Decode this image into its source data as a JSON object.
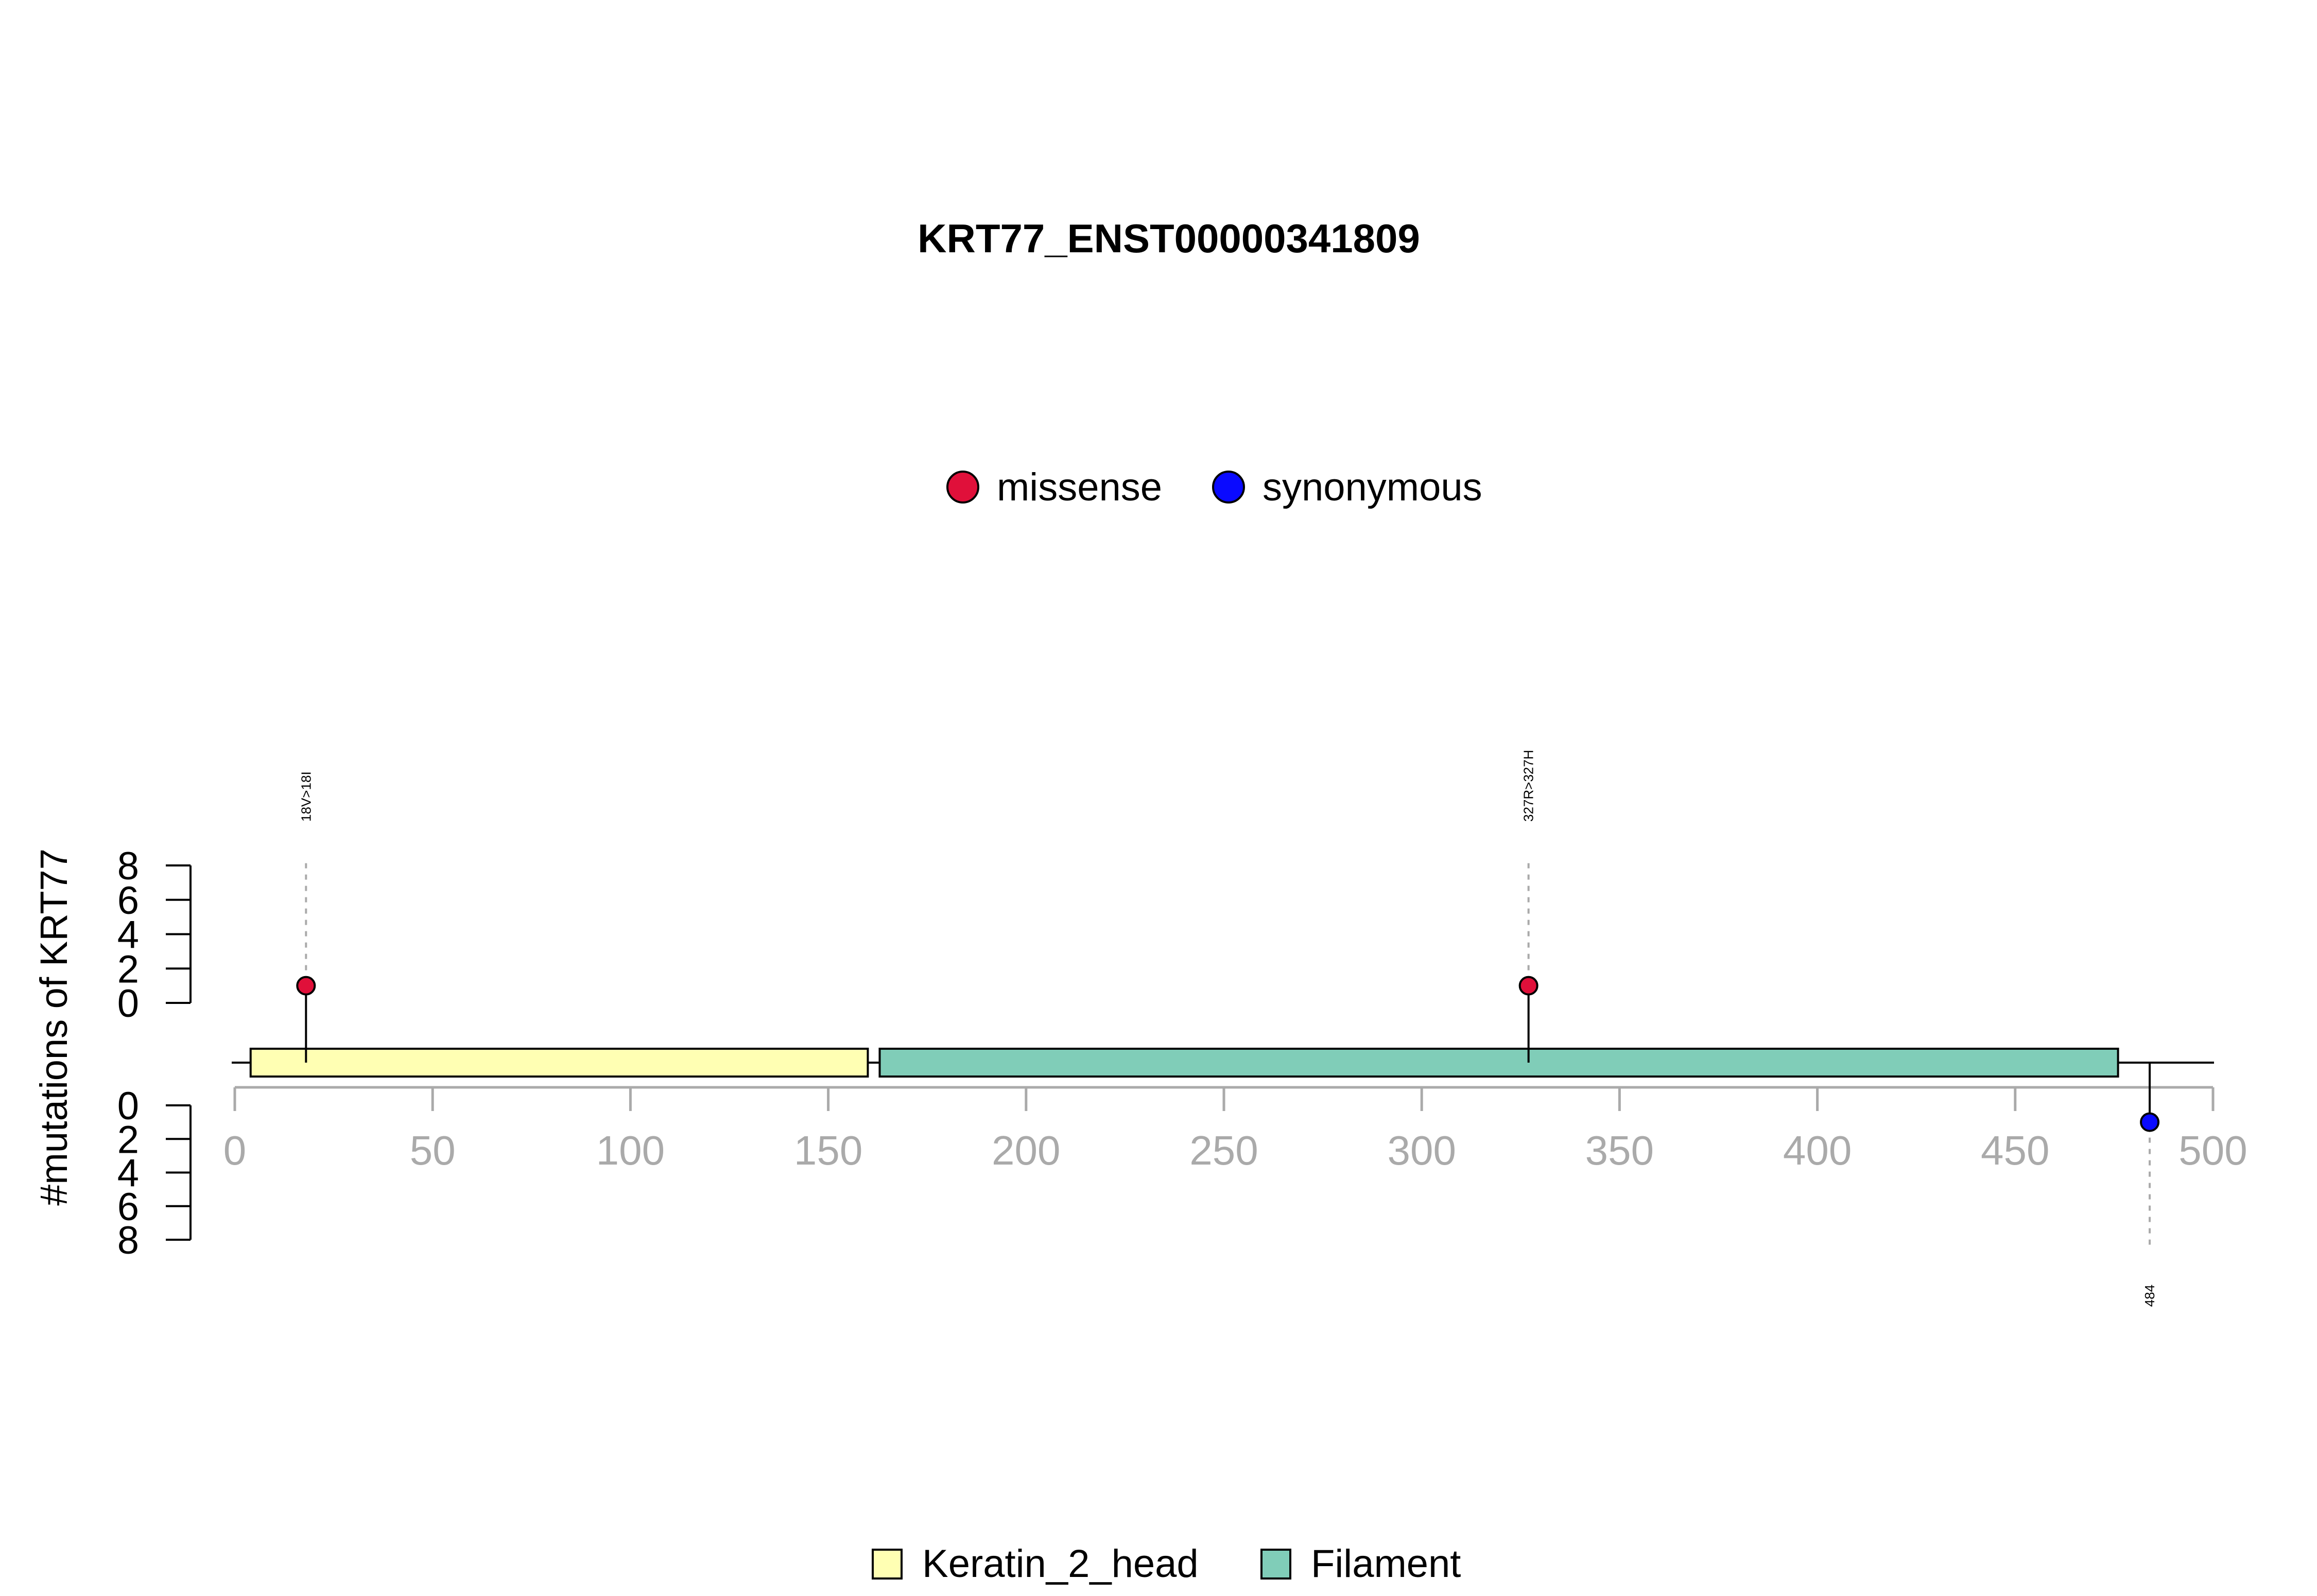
{
  "chart_data": {
    "type": "lollipop",
    "title": "KRT77_ENST00000341809",
    "ylabel": "#mutations of KRT77",
    "xlim": [
      0,
      500
    ],
    "x_ticks": [
      0,
      50,
      100,
      150,
      200,
      250,
      300,
      350,
      400,
      450,
      500
    ],
    "y_ticks": [
      0,
      2,
      4,
      6,
      8
    ],
    "ylim": [
      0,
      8
    ],
    "protein_length": 500,
    "legend_mutations": [
      {
        "name": "missense",
        "color": "#e0103a"
      },
      {
        "name": "synonymous",
        "color": "#0a0aff"
      }
    ],
    "domains": [
      {
        "name": "Keratin_2_head",
        "start": 4,
        "end": 160,
        "color": "#ffffb3"
      },
      {
        "name": "Filament",
        "start": 163,
        "end": 476,
        "color": "#80cdb8"
      }
    ],
    "mutations": [
      {
        "position": 18,
        "count": 1,
        "label": "18V>18I",
        "type": "missense",
        "side": "top"
      },
      {
        "position": 327,
        "count": 1,
        "label": "327R>327H",
        "type": "missense",
        "side": "top"
      },
      {
        "position": 484,
        "count": 1,
        "label": "484",
        "type": "synonymous",
        "side": "bottom"
      }
    ]
  }
}
